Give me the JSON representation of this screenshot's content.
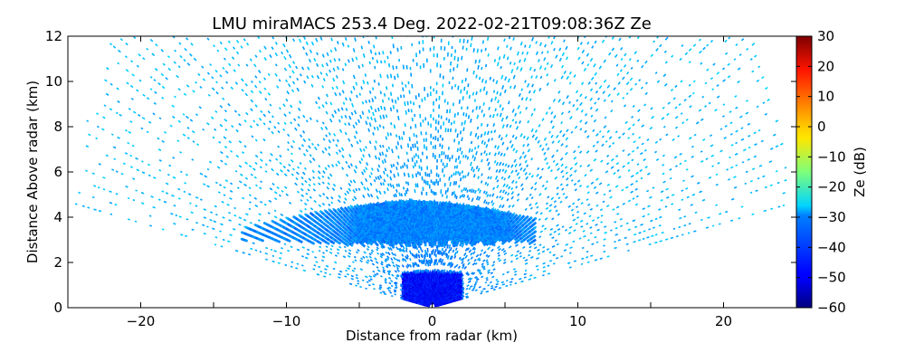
{
  "chart_data": {
    "type": "heatmap",
    "title": "LMU miraMACS 253.4 Deg. 2022-02-21T09:08:36Z  Ze",
    "xlabel": "Distance from radar (km)",
    "ylabel": "Distance Above radar  (km)",
    "xlim": [
      -25,
      25
    ],
    "ylim": [
      0,
      12
    ],
    "xticks": [
      -20,
      -10,
      0,
      10,
      20
    ],
    "xtick_labels": [
      "−20",
      "−10",
      "0",
      "10",
      "20"
    ],
    "yticks": [
      0,
      2,
      4,
      6,
      8,
      10,
      12
    ],
    "ytick_labels": [
      "0",
      "2",
      "4",
      "6",
      "8",
      "10",
      "12"
    ],
    "colorbar": {
      "label": "Ze (dB)",
      "range": [
        -60,
        30
      ],
      "ticks": [
        -60,
        -50,
        -40,
        -30,
        -20,
        -10,
        0,
        10,
        20,
        30
      ],
      "tick_labels": [
        "−60",
        "−50",
        "−40",
        "−30",
        "−20",
        "−10",
        "0",
        "10",
        "20",
        "30"
      ],
      "colormap": "jet"
    },
    "scan": {
      "origin": [
        0,
        0
      ],
      "angle_range_deg": [
        10,
        170
      ],
      "max_range_km": 25,
      "background_level_db": -32,
      "cloud_layer": {
        "x_range": [
          -13,
          7
        ],
        "base_km": 2.6,
        "top_km": 4.6,
        "peak_x": -1.5,
        "ze_db": -37
      },
      "near_radar_echo": {
        "x_range": [
          -2,
          2
        ],
        "top_km": 1.5,
        "ze_db": -48
      }
    },
    "grid": false,
    "legend": "none"
  }
}
